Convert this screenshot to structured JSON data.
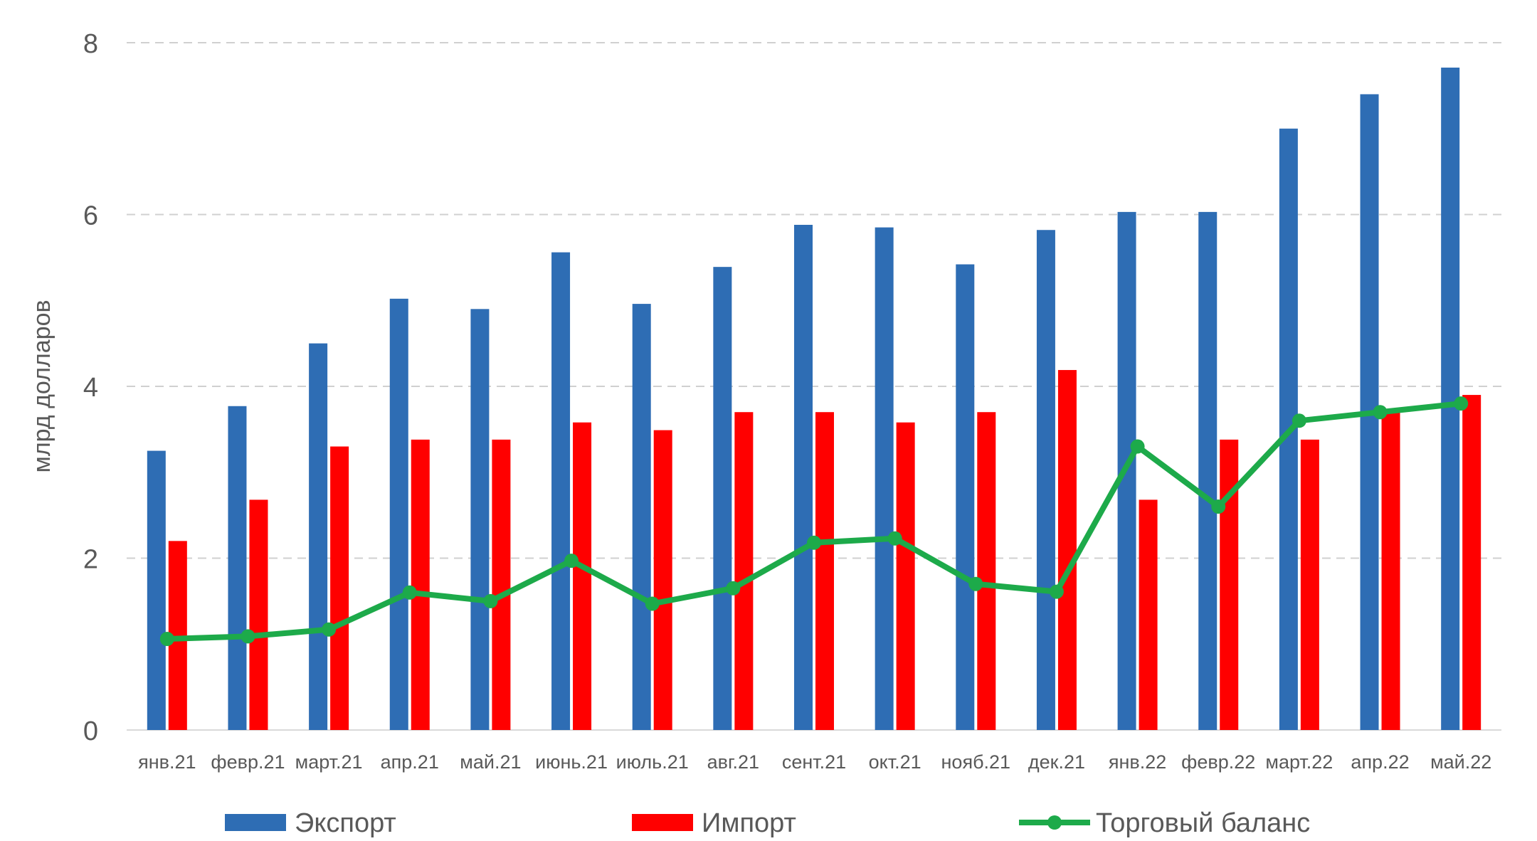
{
  "chart_data": {
    "type": "bar",
    "title": "",
    "xlabel": "",
    "ylabel": "млрд долларов",
    "ylim": [
      0,
      8
    ],
    "yticks": [
      "0",
      "2",
      "4",
      "6",
      "8"
    ],
    "grid": true,
    "legend_position": "bottom",
    "categories": [
      "янв.21",
      "февр.21",
      "март.21",
      "апр.21",
      "май.21",
      "июнь.21",
      "июль.21",
      "авг.21",
      "сент.21",
      "окт.21",
      "нояб.21",
      "дек.21",
      "янв.22",
      "февр.22",
      "март.22",
      "апр.22",
      "май.22"
    ],
    "series": [
      {
        "name": "Экспорт",
        "kind": "bar",
        "color": "#2E6DB4",
        "values": [
          3.25,
          3.77,
          4.5,
          5.02,
          4.9,
          5.56,
          4.96,
          5.39,
          5.88,
          5.85,
          5.42,
          5.82,
          6.03,
          6.03,
          7.0,
          7.4,
          7.71
        ]
      },
      {
        "name": "Импорт",
        "kind": "bar",
        "color": "#FF0000",
        "values": [
          2.2,
          2.68,
          3.3,
          3.38,
          3.38,
          3.58,
          3.49,
          3.7,
          3.7,
          3.58,
          3.7,
          4.19,
          2.68,
          3.38,
          3.38,
          3.7,
          3.9
        ]
      },
      {
        "name": "Торговый баланс",
        "kind": "line",
        "color": "#1DAA4A",
        "values": [
          1.06,
          1.09,
          1.17,
          1.6,
          1.5,
          1.97,
          1.47,
          1.65,
          2.18,
          2.23,
          1.7,
          1.61,
          3.3,
          2.6,
          3.6,
          3.7,
          3.8
        ]
      }
    ]
  }
}
